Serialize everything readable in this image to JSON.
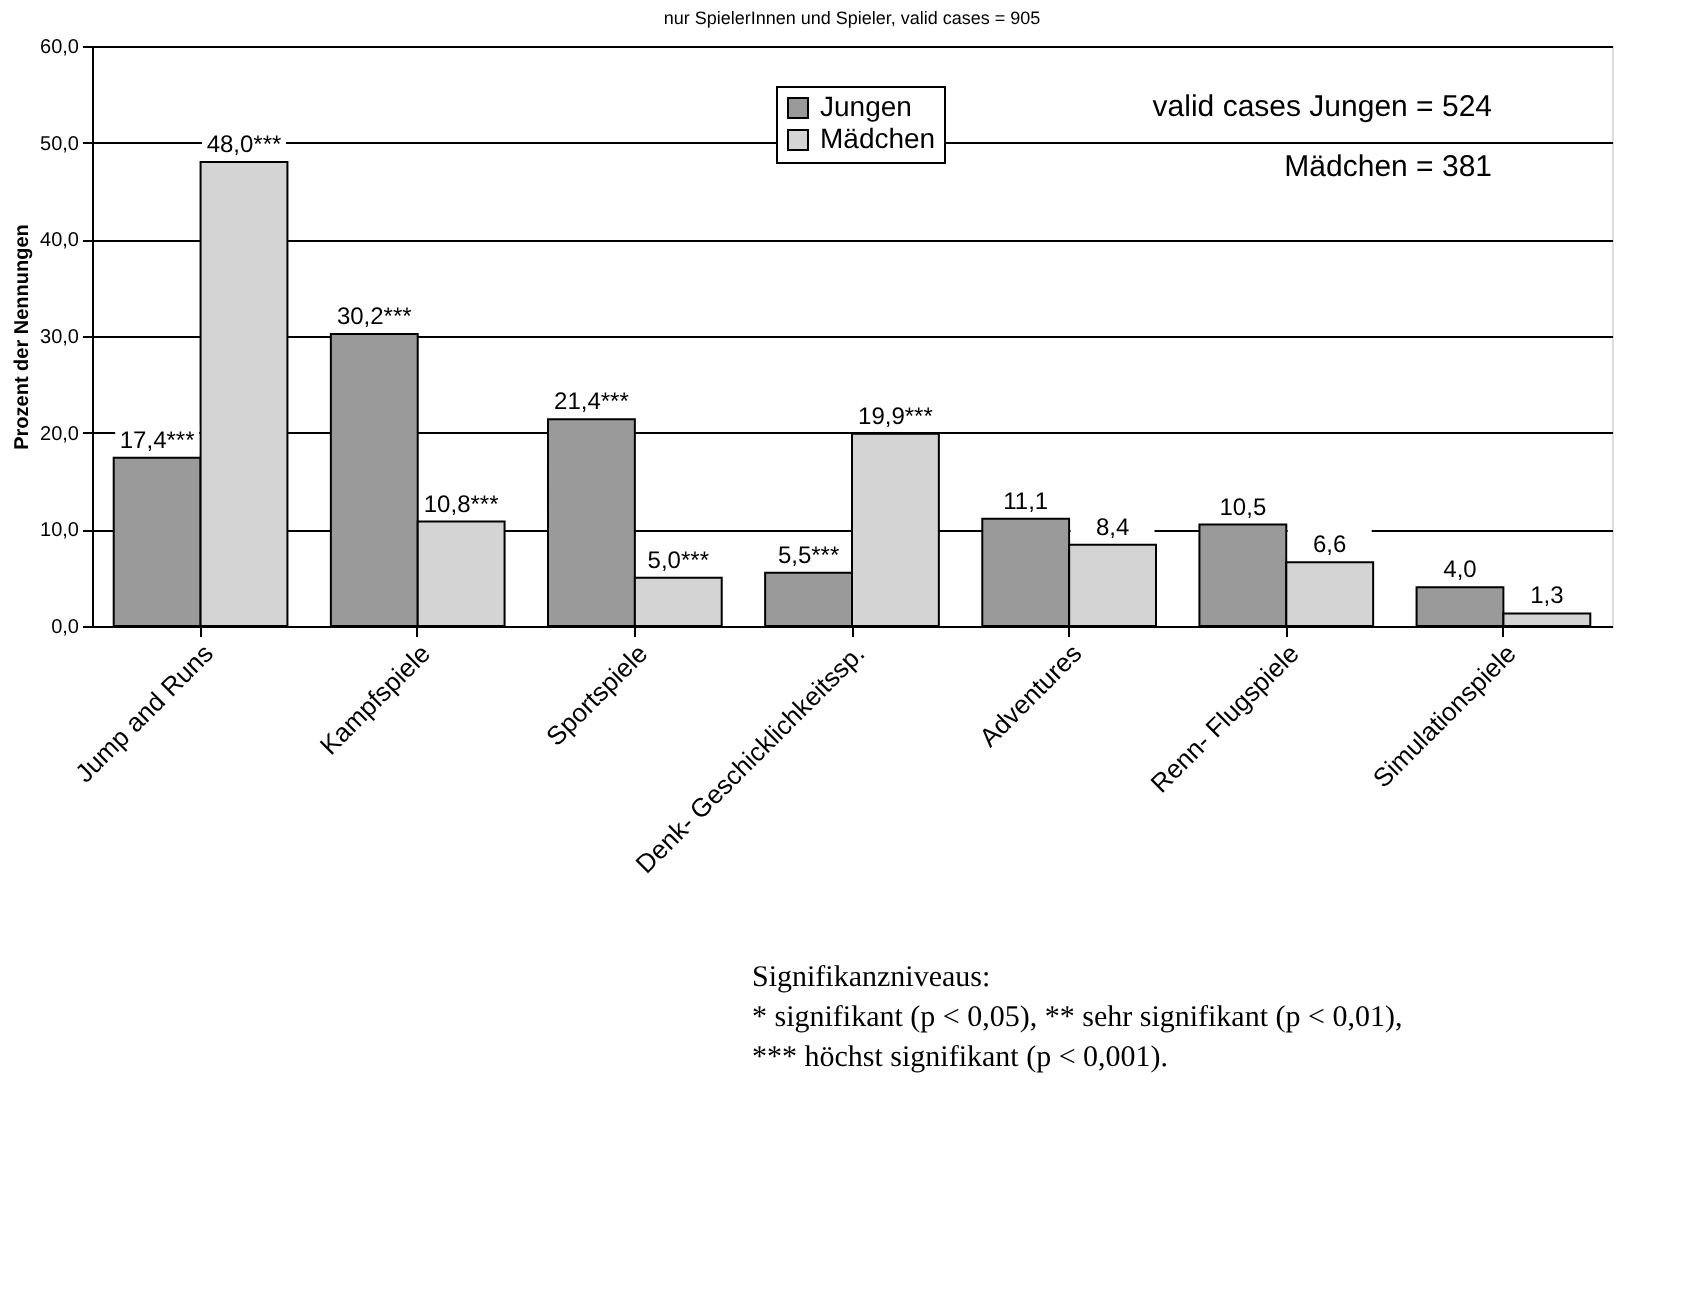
{
  "chart_data": {
    "type": "bar",
    "title": "nur SpielerInnen und Spieler, valid cases = 905",
    "ylabel": "Prozent der Nennungen",
    "categories": [
      "Jump and Runs",
      "Kampfspiele",
      "Sportspiele",
      "Denk- Geschicklichkeitssp.",
      "Adventures",
      "Renn- Flugspiele",
      "Simulationspiele"
    ],
    "series": [
      {
        "name": "Jungen",
        "color": "#9a9a9a",
        "values": [
          17.4,
          30.2,
          21.4,
          5.5,
          11.1,
          10.5,
          4.0
        ],
        "value_labels": [
          "17,4***",
          "30,2***",
          "21,4***",
          "5,5***",
          "11,1",
          "10,5",
          "4,0"
        ]
      },
      {
        "name": "Mädchen",
        "color": "#d4d4d4",
        "values": [
          48.0,
          10.8,
          5.0,
          19.9,
          8.4,
          6.6,
          1.3
        ],
        "value_labels": [
          "48,0***",
          "10,8***",
          "5,0***",
          "19,9***",
          "8,4",
          "6,6",
          "1,3"
        ]
      }
    ],
    "ylim": [
      0,
      60
    ],
    "yticks": [
      {
        "value": 0,
        "label": "0,0"
      },
      {
        "value": 10,
        "label": "10,0"
      },
      {
        "value": 20,
        "label": "20,0"
      },
      {
        "value": 30,
        "label": "30,0"
      },
      {
        "value": 40,
        "label": "40,0"
      },
      {
        "value": 50,
        "label": "50,0"
      },
      {
        "value": 60,
        "label": "60,0"
      }
    ],
    "grid": "y",
    "legend": "top",
    "annotations": [
      "valid cases Jungen = 524",
      "Mädchen = 381",
      "Signifikanzniveaus:",
      "* signifikant (p < 0,05), ** sehr signifikant (p < 0,01),",
      "*** höchst signifikant (p < 0,001)."
    ]
  }
}
